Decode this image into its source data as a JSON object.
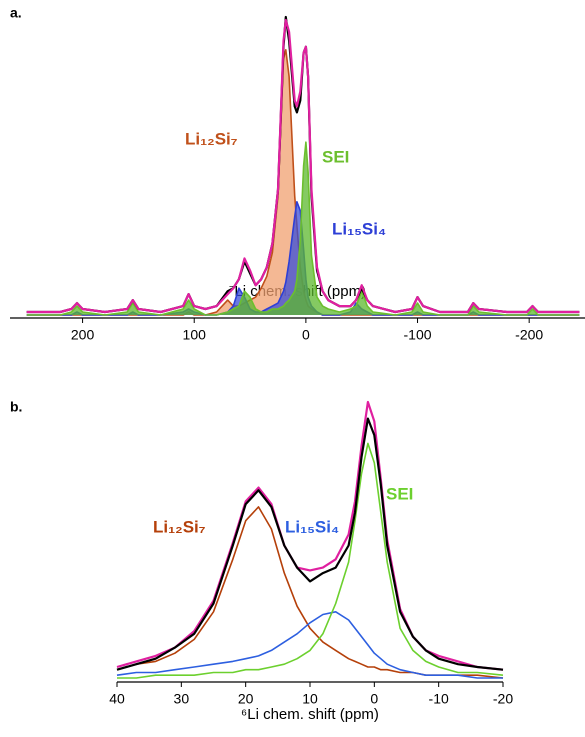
{
  "chart_data": [
    {
      "type": "line",
      "label": "a.",
      "xlabel": "⁷Li chem. shift (ppm)",
      "xlim": [
        265,
        -250
      ],
      "xticks": [
        200,
        100,
        0,
        -100,
        -200
      ],
      "ylim": [
        0,
        100
      ],
      "x": [
        250,
        220,
        210,
        205,
        200,
        180,
        160,
        155,
        150,
        130,
        110,
        105,
        100,
        90,
        80,
        70,
        65,
        60,
        55,
        50,
        45,
        40,
        35,
        30,
        25,
        20,
        18,
        15,
        10,
        8,
        5,
        2,
        0,
        -2,
        -5,
        -10,
        -15,
        -20,
        -30,
        -40,
        -45,
        -50,
        -55,
        -60,
        -80,
        -95,
        -100,
        -105,
        -120,
        -145,
        -150,
        -155,
        -180,
        -198,
        -203,
        -208,
        -230,
        -245
      ],
      "series": [
        {
          "name": "Li₁₂Si₇",
          "color": "#c0501a",
          "fill": "#f0a070",
          "values": [
            0,
            0,
            0,
            0,
            0,
            0,
            0,
            0,
            0,
            0,
            0,
            1,
            0,
            0,
            1,
            5,
            3,
            3,
            4,
            5,
            6,
            9,
            13,
            21,
            40,
            86,
            89,
            80,
            40,
            30,
            16,
            8,
            5,
            3,
            2,
            1,
            0,
            0,
            0,
            0,
            0,
            0,
            0,
            0,
            0,
            0,
            0,
            0,
            0,
            0,
            0,
            0,
            0,
            0,
            0,
            0,
            0,
            0
          ]
        },
        {
          "name": "Li₁₅Si₄",
          "color": "#2d3fd6",
          "fill": "#3a4ed8",
          "values": [
            0,
            0,
            0,
            1,
            0,
            0,
            0,
            1,
            0,
            0,
            1,
            2,
            1,
            0,
            0,
            1,
            3,
            9,
            6,
            2,
            1,
            1,
            2,
            3,
            4,
            8,
            11,
            18,
            33,
            38,
            35,
            22,
            12,
            6,
            3,
            1,
            0,
            0,
            0,
            1,
            4,
            2,
            1,
            0,
            0,
            0,
            1,
            0,
            0,
            0,
            1,
            0,
            0,
            0,
            0,
            0,
            0,
            0
          ]
        },
        {
          "name": "SEI",
          "color": "#6cbf2e",
          "fill": "#5cb82e",
          "values": [
            0,
            0,
            1,
            3,
            1,
            0,
            1,
            4,
            1,
            0,
            2,
            5,
            2,
            0,
            0,
            1,
            2,
            3,
            8,
            6,
            2,
            1,
            1,
            2,
            2,
            3,
            4,
            5,
            8,
            12,
            25,
            50,
            58,
            48,
            20,
            6,
            3,
            2,
            1,
            2,
            3,
            8,
            3,
            1,
            0,
            1,
            4,
            1,
            0,
            0,
            3,
            1,
            0,
            0,
            2,
            0,
            0,
            0
          ]
        },
        {
          "color": "#000000",
          "values": [
            1,
            1,
            2,
            4,
            2,
            1,
            2,
            5,
            2,
            1,
            3,
            7,
            3,
            2,
            3,
            8,
            9,
            12,
            18,
            14,
            10,
            12,
            16,
            24,
            42,
            90,
            100,
            92,
            70,
            68,
            72,
            88,
            90,
            80,
            40,
            15,
            8,
            5,
            3,
            3,
            5,
            9,
            5,
            3,
            1,
            2,
            6,
            3,
            1,
            1,
            4,
            2,
            1,
            1,
            3,
            1,
            1,
            1
          ]
        },
        {
          "color": "#e020a0",
          "values": [
            1,
            1,
            2,
            4,
            2,
            1,
            2,
            5,
            2,
            1,
            3,
            7,
            3,
            2,
            3,
            7,
            9,
            12,
            19,
            15,
            10,
            12,
            16,
            24,
            42,
            92,
            99,
            95,
            72,
            70,
            75,
            88,
            90,
            80,
            42,
            16,
            8,
            5,
            3,
            3,
            5,
            10,
            5,
            3,
            1,
            2,
            6,
            3,
            1,
            1,
            4,
            2,
            1,
            1,
            3,
            1,
            1,
            1
          ]
        }
      ]
    },
    {
      "type": "line",
      "label": "b.",
      "xlabel": "⁶Li chem. shift (ppm)",
      "xlim": [
        40,
        -20
      ],
      "xticks": [
        40,
        30,
        20,
        10,
        0,
        -10,
        -20
      ],
      "ylim": [
        0,
        100
      ],
      "x": [
        40,
        37,
        34,
        31,
        28,
        25,
        22,
        20,
        18,
        16,
        14,
        12,
        10,
        8,
        6,
        4,
        3,
        2,
        1,
        0,
        -1,
        -2,
        -4,
        -6,
        -8,
        -10,
        -13,
        -16,
        -20
      ],
      "series": [
        {
          "name": "Li₁₂Si₇",
          "color": "#b5400a",
          "values": [
            3,
            5,
            6,
            9,
            14,
            24,
            43,
            57,
            62,
            54,
            38,
            26,
            18,
            13,
            10,
            7,
            6,
            5,
            4,
            4,
            3,
            3,
            2,
            2,
            1,
            1,
            1,
            1,
            0
          ]
        },
        {
          "name": "Li₁₅Si₄",
          "color": "#2d5fe0",
          "values": [
            1,
            2,
            2,
            3,
            4,
            5,
            6,
            7,
            8,
            10,
            13,
            16,
            20,
            23,
            24,
            21,
            18,
            15,
            12,
            9,
            7,
            5,
            3,
            2,
            1,
            1,
            1,
            0,
            0
          ]
        },
        {
          "name": "SEI",
          "color": "#6cd02e",
          "values": [
            0,
            0,
            1,
            1,
            1,
            2,
            2,
            3,
            3,
            4,
            5,
            7,
            10,
            16,
            27,
            42,
            57,
            74,
            85,
            78,
            60,
            42,
            18,
            10,
            6,
            4,
            2,
            2,
            1
          ]
        },
        {
          "color": "#e020a0",
          "values": [
            4,
            6,
            8,
            11,
            17,
            28,
            49,
            64,
            69,
            63,
            48,
            40,
            39,
            40,
            43,
            52,
            64,
            84,
            100,
            93,
            72,
            50,
            25,
            15,
            10,
            8,
            6,
            4,
            3
          ]
        },
        {
          "color": "#000000",
          "values": [
            3,
            5,
            7,
            11,
            16,
            27,
            48,
            63,
            68,
            62,
            48,
            40,
            35,
            38,
            40,
            48,
            60,
            80,
            94,
            88,
            70,
            48,
            24,
            15,
            10,
            7,
            5,
            4,
            3
          ]
        }
      ]
    }
  ]
}
